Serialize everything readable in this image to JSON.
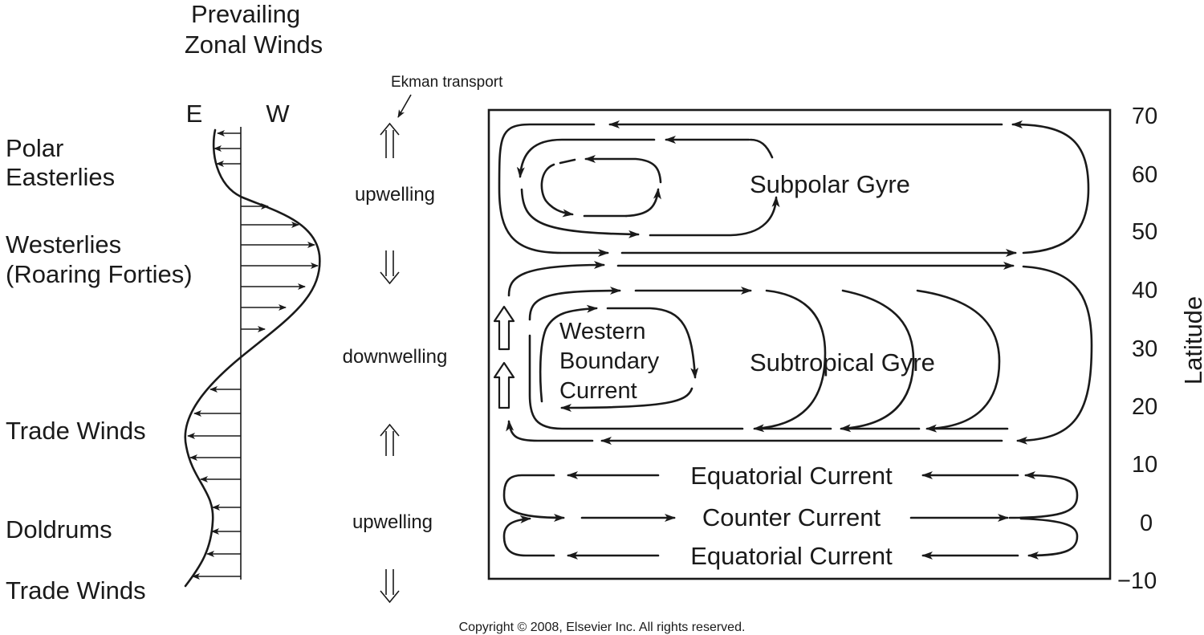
{
  "header": {
    "title_line1": "Prevailing",
    "title_line2": "Zonal Winds",
    "east_label": "E",
    "west_label": "W"
  },
  "wind_belts": [
    {
      "line1": "Polar",
      "line2": "Easterlies"
    },
    {
      "line1": "Westerlies",
      "line2": "(Roaring Forties)"
    },
    {
      "line1": "Trade Winds",
      "line2": ""
    },
    {
      "line1": "Doldrums",
      "line2": ""
    },
    {
      "line1": "Trade Winds",
      "line2": ""
    }
  ],
  "ekman": {
    "label": "Ekman transport",
    "zones": [
      "upwelling",
      "downwelling",
      "upwelling"
    ]
  },
  "gyres": {
    "subpolar": "Subpolar Gyre",
    "subtropical": "Subtropical Gyre",
    "western_boundary": [
      "Western",
      "Boundary",
      "Current"
    ],
    "equatorial_north": "Equatorial Current",
    "counter": "Counter Current",
    "equatorial_south": "Equatorial Current"
  },
  "latitude_axis": {
    "label": "Latitude",
    "ticks": [
      "70",
      "60",
      "50",
      "40",
      "30",
      "20",
      "10",
      "0",
      "−10"
    ]
  },
  "footer": {
    "copyright": "Copyright © 2008, Elsevier Inc. All rights reserved."
  }
}
